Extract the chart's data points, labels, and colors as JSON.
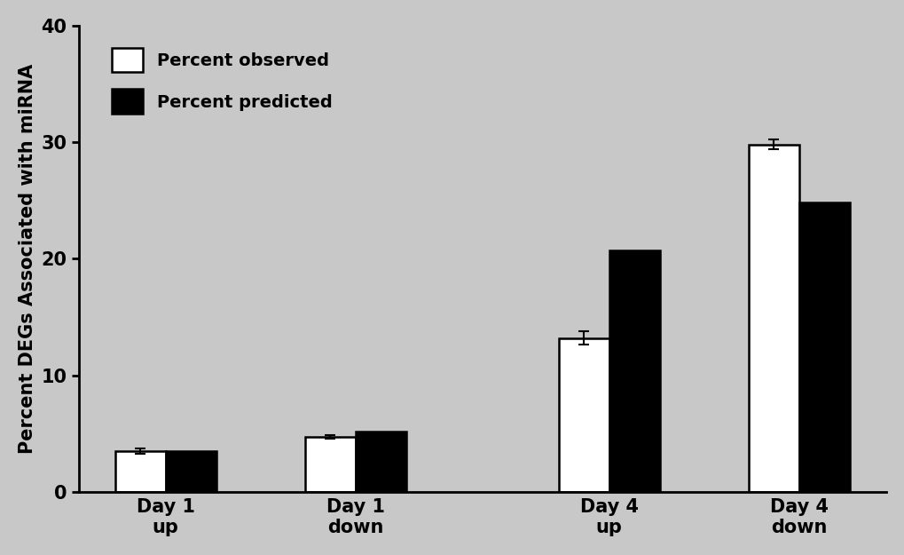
{
  "categories_line1": [
    "Day 1",
    "Day 1",
    "Day 4",
    "Day 4"
  ],
  "categories_line2": [
    "up",
    "down",
    "up",
    "down"
  ],
  "observed_values": [
    3.5,
    4.75,
    13.2,
    29.8
  ],
  "predicted_values": [
    3.5,
    5.2,
    20.7,
    24.8
  ],
  "observed_errors": [
    0.22,
    0.15,
    0.55,
    0.42
  ],
  "bar_width": 0.32,
  "group_positions": [
    1.0,
    2.2,
    3.8,
    5.0
  ],
  "observed_color": "#ffffff",
  "predicted_color": "#000000",
  "bar_edge_color": "#000000",
  "ylabel": "Percent DEGs Associated with miRNA",
  "ylim": [
    0,
    40
  ],
  "yticks": [
    0,
    10,
    20,
    30,
    40
  ],
  "legend_observed": "Percent observed",
  "legend_predicted": "Percent predicted",
  "background_color": "#c8c8c8",
  "axis_linewidth": 2.0,
  "bar_linewidth": 1.8,
  "font_size": 15,
  "tick_font_size": 15,
  "ylabel_font_size": 15,
  "legend_font_size": 14,
  "xlabel_font_size": 15
}
